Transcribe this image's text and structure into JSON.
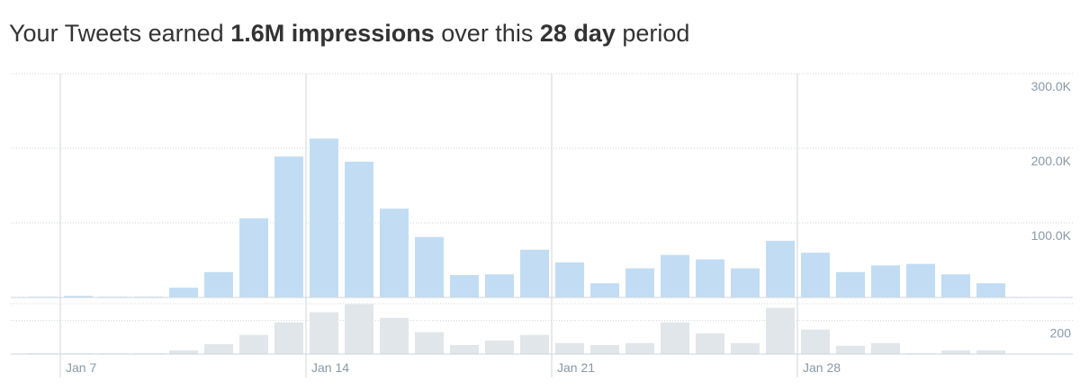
{
  "header": {
    "title_parts": [
      "Your Tweets earned ",
      "1.6M impressions",
      " over this ",
      "28 day",
      " period"
    ]
  },
  "chart_data": [
    {
      "type": "bar",
      "color": "#c2ddf3",
      "categories": [
        null,
        "Jan 7",
        null,
        null,
        null,
        null,
        null,
        null,
        "Jan 14",
        null,
        null,
        null,
        null,
        null,
        null,
        "Jan 21",
        null,
        null,
        null,
        null,
        null,
        null,
        "Jan 28",
        null,
        null,
        null,
        null,
        null
      ],
      "values": [
        1000,
        2000,
        1000,
        1000,
        13000,
        34000,
        106000,
        189000,
        213000,
        182000,
        119000,
        81000,
        30000,
        31000,
        64000,
        47000,
        19000,
        39000,
        57000,
        51000,
        39000,
        76000,
        60000,
        34000,
        43000,
        45000,
        31000,
        19000
      ],
      "ylim": [
        0,
        300000
      ],
      "yticks": [
        {
          "value": 100000,
          "label": "100.0K"
        },
        {
          "value": 200000,
          "label": "200.0K"
        },
        {
          "value": 300000,
          "label": "300.0K"
        }
      ],
      "grid": true
    },
    {
      "type": "bar",
      "color": "#e1e6ea",
      "values": [
        5,
        5,
        5,
        5,
        22,
        59,
        114,
        189,
        249,
        297,
        216,
        130,
        54,
        81,
        114,
        65,
        54,
        65,
        189,
        124,
        65,
        276,
        146,
        49,
        65,
        5,
        22,
        22
      ],
      "ylim": [
        0,
        300
      ],
      "yticks": [
        200
      ],
      "grid": true
    }
  ]
}
